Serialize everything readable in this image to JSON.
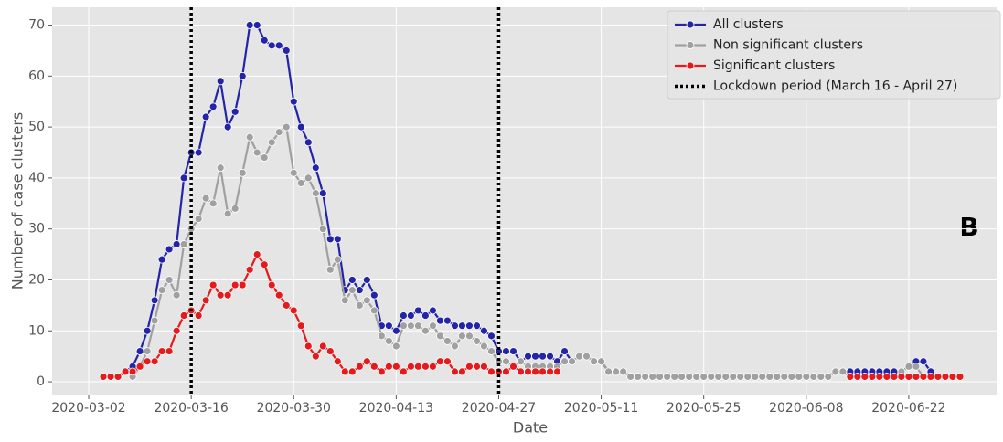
{
  "chart_data": {
    "type": "line",
    "x_label": "Date",
    "y_label": "Number of case clusters",
    "annotation": "B",
    "x": [
      "2020-03-04",
      "2020-03-05",
      "2020-03-06",
      "2020-03-07",
      "2020-03-08",
      "2020-03-09",
      "2020-03-10",
      "2020-03-11",
      "2020-03-12",
      "2020-03-13",
      "2020-03-14",
      "2020-03-15",
      "2020-03-16",
      "2020-03-17",
      "2020-03-18",
      "2020-03-19",
      "2020-03-20",
      "2020-03-21",
      "2020-03-22",
      "2020-03-23",
      "2020-03-24",
      "2020-03-25",
      "2020-03-26",
      "2020-03-27",
      "2020-03-28",
      "2020-03-29",
      "2020-03-30",
      "2020-03-31",
      "2020-04-01",
      "2020-04-02",
      "2020-04-03",
      "2020-04-04",
      "2020-04-05",
      "2020-04-06",
      "2020-04-07",
      "2020-04-08",
      "2020-04-09",
      "2020-04-10",
      "2020-04-11",
      "2020-04-12",
      "2020-04-13",
      "2020-04-14",
      "2020-04-15",
      "2020-04-16",
      "2020-04-17",
      "2020-04-18",
      "2020-04-19",
      "2020-04-20",
      "2020-04-21",
      "2020-04-22",
      "2020-04-23",
      "2020-04-24",
      "2020-04-25",
      "2020-04-26",
      "2020-04-27",
      "2020-04-28",
      "2020-04-29",
      "2020-04-30",
      "2020-05-01",
      "2020-05-02",
      "2020-05-03",
      "2020-05-04",
      "2020-05-05",
      "2020-05-06",
      "2020-05-07",
      "2020-05-08",
      "2020-05-09",
      "2020-05-10",
      "2020-05-11",
      "2020-05-12",
      "2020-05-13",
      "2020-05-14",
      "2020-05-15",
      "2020-05-16",
      "2020-05-17",
      "2020-05-18",
      "2020-05-19",
      "2020-05-20",
      "2020-05-21",
      "2020-05-22",
      "2020-05-23",
      "2020-05-24",
      "2020-05-25",
      "2020-05-26",
      "2020-05-27",
      "2020-05-28",
      "2020-05-29",
      "2020-05-30",
      "2020-05-31",
      "2020-06-01",
      "2020-06-02",
      "2020-06-03",
      "2020-06-04",
      "2020-06-05",
      "2020-06-06",
      "2020-06-07",
      "2020-06-08",
      "2020-06-09",
      "2020-06-10",
      "2020-06-11",
      "2020-06-12",
      "2020-06-13",
      "2020-06-14",
      "2020-06-15",
      "2020-06-16",
      "2020-06-17",
      "2020-06-18",
      "2020-06-19",
      "2020-06-20",
      "2020-06-21",
      "2020-06-22",
      "2020-06-23",
      "2020-06-24",
      "2020-06-25",
      "2020-06-26",
      "2020-06-27",
      "2020-06-28",
      "2020-06-29"
    ],
    "series": [
      {
        "name": "All clusters",
        "color": "#2424a8",
        "values": [
          1,
          1,
          1,
          2,
          3,
          6,
          10,
          16,
          24,
          26,
          27,
          40,
          45,
          45,
          52,
          54,
          59,
          50,
          53,
          60,
          70,
          70,
          67,
          66,
          66,
          65,
          55,
          50,
          47,
          42,
          37,
          28,
          28,
          18,
          20,
          18,
          20,
          17,
          11,
          11,
          10,
          13,
          13,
          14,
          13,
          14,
          12,
          12,
          11,
          11,
          11,
          11,
          10,
          9,
          6,
          6,
          6,
          4,
          5,
          5,
          5,
          5,
          4,
          6,
          4,
          5,
          5,
          4,
          4,
          2,
          2,
          2,
          1,
          1,
          1,
          1,
          1,
          1,
          1,
          1,
          1,
          1,
          1,
          1,
          1,
          1,
          1,
          1,
          1,
          1,
          1,
          1,
          1,
          1,
          1,
          1,
          1,
          1,
          1,
          1,
          2,
          2,
          2,
          2,
          2,
          2,
          2,
          2,
          2,
          2,
          3,
          4,
          4,
          2,
          null,
          null,
          null,
          null
        ]
      },
      {
        "name": "Non significant clusters",
        "color": "#a0a0a0",
        "values": [
          null,
          null,
          null,
          null,
          1,
          3,
          6,
          12,
          18,
          20,
          17,
          27,
          30,
          32,
          36,
          35,
          42,
          33,
          34,
          41,
          48,
          45,
          44,
          47,
          49,
          50,
          41,
          39,
          40,
          37,
          30,
          22,
          24,
          16,
          18,
          15,
          16,
          14,
          9,
          8,
          7,
          11,
          11,
          11,
          10,
          11,
          9,
          8,
          7,
          9,
          9,
          8,
          7,
          6,
          4,
          4,
          3,
          4,
          3,
          3,
          3,
          3,
          3,
          4,
          4,
          5,
          5,
          4,
          4,
          2,
          2,
          2,
          1,
          1,
          1,
          1,
          1,
          1,
          1,
          1,
          1,
          1,
          1,
          1,
          1,
          1,
          1,
          1,
          1,
          1,
          1,
          1,
          1,
          1,
          1,
          1,
          1,
          1,
          1,
          1,
          2,
          2,
          1,
          1,
          1,
          1,
          1,
          1,
          1,
          2,
          3,
          3,
          1,
          null,
          null,
          null,
          null,
          null
        ]
      },
      {
        "name": "Significant clusters",
        "color": "#e41a1c",
        "values": [
          1,
          1,
          1,
          2,
          2,
          3,
          4,
          4,
          6,
          6,
          10,
          13,
          14,
          13,
          16,
          19,
          17,
          17,
          19,
          19,
          22,
          25,
          23,
          19,
          17,
          15,
          14,
          11,
          7,
          5,
          7,
          6,
          4,
          2,
          2,
          3,
          4,
          3,
          2,
          3,
          3,
          2,
          3,
          3,
          3,
          3,
          4,
          4,
          2,
          2,
          3,
          3,
          3,
          2,
          2,
          2,
          3,
          2,
          2,
          2,
          2,
          2,
          2,
          null,
          null,
          null,
          null,
          null,
          null,
          null,
          null,
          null,
          null,
          null,
          null,
          null,
          null,
          null,
          null,
          null,
          null,
          null,
          null,
          null,
          null,
          null,
          null,
          null,
          null,
          null,
          null,
          null,
          null,
          null,
          null,
          null,
          null,
          null,
          null,
          null,
          null,
          null,
          1,
          1,
          1,
          1,
          1,
          1,
          1,
          1,
          1,
          1,
          1,
          1,
          1,
          1,
          1,
          1
        ]
      }
    ],
    "vlines": {
      "name": "Lockdown period (March 16 - April 27)",
      "color": "#000000",
      "x": [
        "2020-03-16",
        "2020-04-27"
      ]
    },
    "xlim": [
      "2020-02-26",
      "2020-07-04"
    ],
    "xticks": [
      "2020-03-02",
      "2020-03-16",
      "2020-03-30",
      "2020-04-13",
      "2020-04-27",
      "2020-05-11",
      "2020-05-25",
      "2020-06-08",
      "2020-06-22"
    ],
    "ylim": [
      -2.5,
      73.5
    ],
    "yticks": [
      0,
      10,
      20,
      30,
      40,
      50,
      60,
      70
    ],
    "grid": true,
    "legend": "upper right"
  }
}
